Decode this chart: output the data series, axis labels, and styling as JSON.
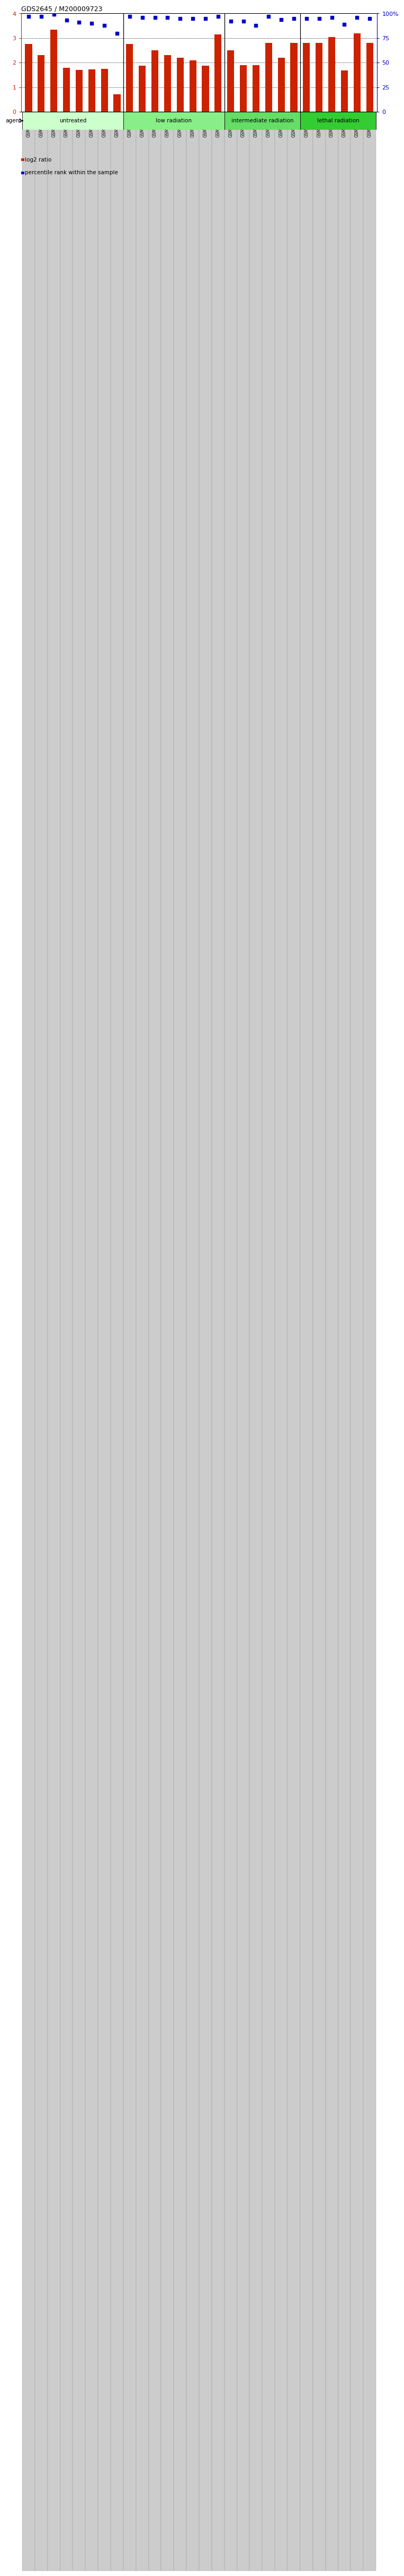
{
  "title": "GDS2645 / M200009723",
  "samples": [
    "GSM158484",
    "GSM158485",
    "GSM158486",
    "GSM158487",
    "GSM158488",
    "GSM158489",
    "GSM158490",
    "GSM158491",
    "GSM158492",
    "GSM158493",
    "GSM158494",
    "GSM158495",
    "GSM158496",
    "GSM158497",
    "GSM158498",
    "GSM158499",
    "GSM158500",
    "GSM158501",
    "GSM158502",
    "GSM158503",
    "GSM158504",
    "GSM158505",
    "GSM158506",
    "GSM158507",
    "GSM158508",
    "GSM158509",
    "GSM158510",
    "GSM158511"
  ],
  "log2_ratio": [
    2.75,
    2.3,
    3.35,
    1.8,
    1.7,
    1.72,
    1.75,
    0.72,
    2.75,
    1.88,
    2.5,
    2.3,
    2.2,
    2.1,
    1.88,
    3.15,
    2.5,
    1.9,
    1.9,
    2.8,
    2.2,
    2.8,
    2.8,
    2.8,
    3.05,
    1.68,
    3.2,
    2.8
  ],
  "percentile": [
    97,
    97,
    99,
    93,
    91,
    90,
    88,
    80,
    97,
    96,
    96,
    96,
    95,
    95,
    95,
    97,
    92,
    92,
    88,
    97,
    94,
    95,
    95,
    95,
    96,
    89,
    96,
    95
  ],
  "bar_color": "#cc2200",
  "dot_color": "#0000cc",
  "groups": [
    {
      "label": "untreated",
      "start": 0,
      "end": 8,
      "color": "#ccffcc"
    },
    {
      "label": "low radiation",
      "start": 8,
      "end": 16,
      "color": "#88ee88"
    },
    {
      "label": "intermediate radiation",
      "start": 16,
      "end": 22,
      "color": "#66dd66"
    },
    {
      "label": "lethal radiation",
      "start": 22,
      "end": 28,
      "color": "#33cc33"
    }
  ],
  "group_separators": [
    8,
    16,
    22
  ],
  "ylim_left": [
    0,
    4
  ],
  "ylim_right": [
    0,
    100
  ],
  "yticks_left": [
    0,
    1,
    2,
    3,
    4
  ],
  "yticks_right": [
    0,
    25,
    50,
    75,
    100
  ],
  "yticklabels_right": [
    "0",
    "25",
    "50",
    "75",
    "100%"
  ],
  "gridlines_at": [
    1,
    2,
    3
  ],
  "background_color": "#ffffff",
  "tick_bg_color": "#cccccc",
  "agent_label": "agent",
  "legend_items": [
    {
      "color": "#cc2200",
      "label": "log2 ratio"
    },
    {
      "color": "#0000cc",
      "label": "percentile rank within the sample"
    }
  ]
}
